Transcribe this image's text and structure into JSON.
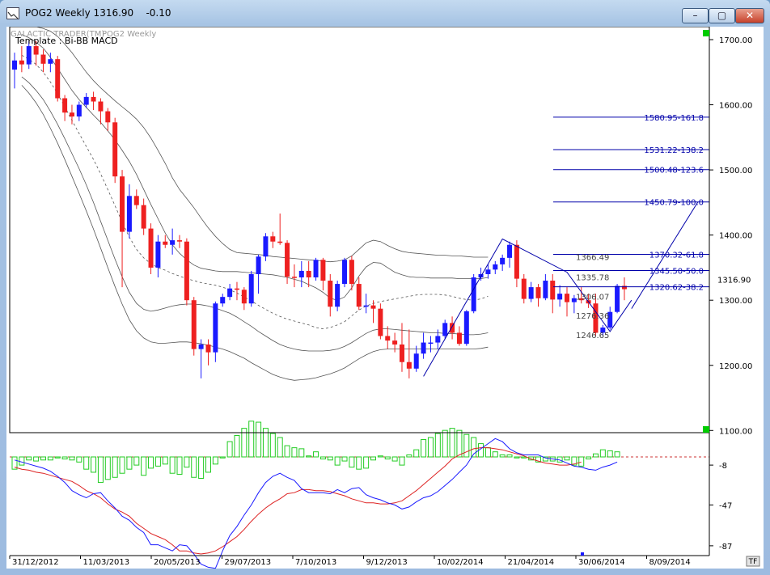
{
  "window": {
    "title": "POG2 Weekly 1316.90    -0.10",
    "buttons": {
      "minimize": "–",
      "maximize": "▢",
      "close": "✕"
    }
  },
  "header": {
    "brand": "GALACTIC TRADER(TM)",
    "instrument": "POG2 Weekly",
    "template": "Template : Bi-BB MACD"
  },
  "colors": {
    "up": "#1a1aff",
    "down": "#ee2020",
    "fib": "#0000aa",
    "macd_line": "#1a1aff",
    "signal_line": "#dd2222",
    "histogram": "#22cc22",
    "bands": "#555555",
    "marker": "#00cc00"
  },
  "chart_data": [
    {
      "type": "candlestick",
      "title": "POG2 Weekly",
      "x_labels": [
        "31/12/2012",
        "11/03/2013",
        "20/05/2013",
        "29/07/2013",
        "7/10/2013",
        "9/12/2013",
        "10/02/2014",
        "21/04/2014",
        "30/06/2014",
        "8/09/2014"
      ],
      "y_ticks": [
        1700,
        1600,
        1500,
        1400,
        1300,
        1200,
        1100
      ],
      "y_tick_labels": [
        "1700.00",
        "1600.00",
        "1500.00",
        "1400.00",
        "1300.00",
        "1200.00",
        "1100.00"
      ],
      "ylim": [
        1095,
        1725
      ],
      "last_price": 1316.9,
      "last_price_label": "1316.90",
      "change": -0.1,
      "candles": [
        [
          1654,
          1668,
          1625,
          1680
        ],
        [
          1668,
          1662,
          1650,
          1690
        ],
        [
          1662,
          1690,
          1655,
          1698
        ],
        [
          1690,
          1677,
          1660,
          1698
        ],
        [
          1677,
          1663,
          1650,
          1685
        ],
        [
          1663,
          1670,
          1650,
          1680
        ],
        [
          1670,
          1610,
          1605,
          1675
        ],
        [
          1610,
          1588,
          1575,
          1615
        ],
        [
          1588,
          1582,
          1570,
          1600
        ],
        [
          1582,
          1600,
          1575,
          1605
        ],
        [
          1600,
          1612,
          1595,
          1618
        ],
        [
          1612,
          1605,
          1592,
          1620
        ],
        [
          1605,
          1590,
          1570,
          1610
        ],
        [
          1590,
          1573,
          1560,
          1595
        ],
        [
          1573,
          1490,
          1480,
          1580
        ],
        [
          1490,
          1405,
          1320,
          1500
        ],
        [
          1405,
          1460,
          1395,
          1478
        ],
        [
          1460,
          1446,
          1440,
          1470
        ],
        [
          1446,
          1410,
          1400,
          1456
        ],
        [
          1410,
          1350,
          1340,
          1418
        ],
        [
          1350,
          1390,
          1335,
          1400
        ],
        [
          1390,
          1385,
          1380,
          1400
        ],
        [
          1385,
          1392,
          1370,
          1410
        ],
        [
          1392,
          1390,
          1380,
          1400
        ],
        [
          1390,
          1300,
          1292,
          1395
        ],
        [
          1300,
          1225,
          1215,
          1305
        ],
        [
          1225,
          1232,
          1180,
          1240
        ],
        [
          1232,
          1220,
          1200,
          1240
        ],
        [
          1220,
          1295,
          1205,
          1298
        ],
        [
          1295,
          1305,
          1290,
          1310
        ],
        [
          1305,
          1318,
          1300,
          1325
        ],
        [
          1318,
          1316,
          1300,
          1328
        ],
        [
          1316,
          1295,
          1285,
          1320
        ],
        [
          1295,
          1340,
          1290,
          1345
        ],
        [
          1340,
          1367,
          1310,
          1370
        ],
        [
          1367,
          1398,
          1360,
          1403
        ],
        [
          1398,
          1390,
          1380,
          1405
        ],
        [
          1390,
          1388,
          1385,
          1433
        ],
        [
          1388,
          1336,
          1325,
          1392
        ],
        [
          1336,
          1335,
          1320,
          1355
        ],
        [
          1335,
          1345,
          1320,
          1360
        ],
        [
          1345,
          1335,
          1320,
          1360
        ],
        [
          1335,
          1362,
          1330,
          1365
        ],
        [
          1362,
          1330,
          1315,
          1365
        ],
        [
          1330,
          1290,
          1275,
          1340
        ],
        [
          1290,
          1325,
          1283,
          1330
        ],
        [
          1325,
          1362,
          1320,
          1365
        ],
        [
          1362,
          1325,
          1315,
          1368
        ],
        [
          1325,
          1290,
          1285,
          1335
        ],
        [
          1290,
          1292,
          1280,
          1310
        ],
        [
          1292,
          1287,
          1265,
          1300
        ],
        [
          1287,
          1245,
          1240,
          1295
        ],
        [
          1245,
          1238,
          1225,
          1260
        ],
        [
          1238,
          1232,
          1220,
          1250
        ],
        [
          1232,
          1205,
          1190,
          1265
        ],
        [
          1205,
          1195,
          1180,
          1255
        ],
        [
          1195,
          1218,
          1190,
          1230
        ],
        [
          1218,
          1235,
          1210,
          1250
        ],
        [
          1235,
          1235,
          1220,
          1245
        ],
        [
          1235,
          1245,
          1225,
          1255
        ],
        [
          1245,
          1265,
          1240,
          1270
        ],
        [
          1265,
          1250,
          1240,
          1275
        ],
        [
          1250,
          1233,
          1230,
          1260
        ],
        [
          1233,
          1283,
          1230,
          1285
        ],
        [
          1283,
          1335,
          1280,
          1340
        ],
        [
          1335,
          1340,
          1330,
          1350
        ],
        [
          1340,
          1347,
          1333,
          1355
        ],
        [
          1347,
          1355,
          1340,
          1360
        ],
        [
          1355,
          1365,
          1345,
          1370
        ],
        [
          1365,
          1385,
          1350,
          1390
        ],
        [
          1385,
          1333,
          1320,
          1392
        ],
        [
          1333,
          1302,
          1295,
          1340
        ],
        [
          1302,
          1320,
          1297,
          1328
        ],
        [
          1320,
          1303,
          1290,
          1325
        ],
        [
          1303,
          1330,
          1300,
          1340
        ],
        [
          1330,
          1301,
          1280,
          1340
        ],
        [
          1301,
          1310,
          1290,
          1323
        ],
        [
          1310,
          1297,
          1275,
          1320
        ],
        [
          1297,
          1303,
          1280,
          1308
        ],
        [
          1303,
          1300,
          1295,
          1320
        ],
        [
          1300,
          1295,
          1288,
          1310
        ],
        [
          1295,
          1250,
          1245,
          1310
        ],
        [
          1250,
          1258,
          1245,
          1262
        ],
        [
          1258,
          1282,
          1255,
          1290
        ],
        [
          1282,
          1322,
          1280,
          1325
        ],
        [
          1322,
          1316.9,
          1300,
          1335
        ]
      ],
      "bands_start": 1,
      "bb_upper_outer": [
        1725,
        1722,
        1720,
        1717,
        1713,
        1705,
        1693,
        1680,
        1665,
        1650,
        1637,
        1626,
        1616,
        1606,
        1597,
        1588,
        1578,
        1565,
        1549,
        1530,
        1510,
        1488,
        1470,
        1456,
        1442,
        1426,
        1411,
        1398,
        1387,
        1378,
        1373,
        1372,
        1371,
        1370,
        1369,
        1367,
        1366,
        1365,
        1364,
        1363,
        1362,
        1361,
        1360,
        1359,
        1360,
        1362,
        1368,
        1378,
        1388,
        1392,
        1390,
        1384,
        1379,
        1375,
        1373,
        1372,
        1371,
        1370,
        1369,
        1369,
        1368,
        1368,
        1367,
        1366,
        1366,
        1366
      ],
      "bb_upper_inner": [
        1708,
        1703,
        1696,
        1687,
        1673,
        1656,
        1639,
        1622,
        1608,
        1596,
        1584,
        1573,
        1560,
        1546,
        1530,
        1513,
        1493,
        1470,
        1447,
        1425,
        1403,
        1385,
        1372,
        1362,
        1354,
        1349,
        1347,
        1345,
        1344,
        1344,
        1344,
        1343,
        1342,
        1341,
        1340,
        1339,
        1337,
        1335,
        1332,
        1329,
        1324,
        1319,
        1312,
        1303,
        1300,
        1305,
        1319,
        1337,
        1351,
        1358,
        1357,
        1350,
        1343,
        1339,
        1336,
        1335,
        1335,
        1334,
        1334,
        1334,
        1334,
        1333,
        1333,
        1333,
        1333,
        1335
      ],
      "bb_mid": [
        1676,
        1670,
        1662,
        1650,
        1635,
        1617,
        1597,
        1576,
        1556,
        1536,
        1516,
        1494,
        1470,
        1445,
        1420,
        1397,
        1378,
        1365,
        1356,
        1350,
        1346,
        1341,
        1337,
        1333,
        1330,
        1327,
        1325,
        1323,
        1320,
        1316,
        1311,
        1305,
        1299,
        1292,
        1286,
        1280,
        1275,
        1271,
        1268,
        1265,
        1262,
        1258,
        1256,
        1258,
        1262,
        1267,
        1276,
        1285,
        1291,
        1295,
        1298,
        1300,
        1302,
        1304,
        1306,
        1308,
        1309,
        1309,
        1309,
        1308,
        1306,
        1303,
        1301,
        1300,
        1302,
        1306
      ],
      "bb_lower_inner": [
        1643,
        1634,
        1622,
        1608,
        1590,
        1570,
        1548,
        1525,
        1502,
        1477,
        1450,
        1421,
        1392,
        1363,
        1336,
        1312,
        1295,
        1286,
        1283,
        1285,
        1288,
        1291,
        1293,
        1294,
        1294,
        1293,
        1291,
        1288,
        1284,
        1280,
        1274,
        1267,
        1260,
        1252,
        1245,
        1238,
        1232,
        1228,
        1225,
        1223,
        1222,
        1222,
        1222,
        1223,
        1225,
        1229,
        1235,
        1242,
        1249,
        1254,
        1256,
        1256,
        1255,
        1254,
        1253,
        1252,
        1251,
        1250,
        1250,
        1249,
        1249,
        1248,
        1247,
        1247,
        1248,
        1250
      ],
      "bb_lower_outer": [
        1630,
        1618,
        1603,
        1585,
        1564,
        1541,
        1516,
        1490,
        1464,
        1437,
        1409,
        1380,
        1350,
        1321,
        1294,
        1270,
        1253,
        1242,
        1236,
        1234,
        1234,
        1235,
        1236,
        1236,
        1235,
        1233,
        1231,
        1228,
        1225,
        1221,
        1216,
        1211,
        1204,
        1198,
        1192,
        1186,
        1182,
        1179,
        1177,
        1178,
        1179,
        1181,
        1184,
        1187,
        1191,
        1196,
        1203,
        1210,
        1216,
        1221,
        1224,
        1225,
        1225,
        1225,
        1225,
        1225,
        1225,
        1225,
        1225,
        1225,
        1225,
        1225,
        1225,
        1225,
        1226,
        1228
      ],
      "zigzag": [
        [
          57,
          1183
        ],
        [
          68,
          1394
        ],
        [
          77,
          1343
        ],
        [
          83,
          1252
        ],
        [
          86,
          1300
        ]
      ],
      "fib_levels": [
        {
          "value": 1580.95,
          "label": "1580.95-161.8"
        },
        {
          "value": 1531.22,
          "label": "1531.22-138.2"
        },
        {
          "value": 1500.48,
          "label": "1500.48-123.6"
        },
        {
          "value": 1450.79,
          "label": "1450.79-100.0"
        },
        {
          "value": 1370.32,
          "label": "1370.32-61.8"
        },
        {
          "value": 1345.5,
          "label": "1345.50-50.0"
        },
        {
          "value": 1320.62,
          "label": "1320.62-38.2"
        }
      ],
      "band_values": [
        {
          "value": 1366.49,
          "label": "1366.49"
        },
        {
          "value": 1335.78,
          "label": "1335.78"
        },
        {
          "value": 1306.07,
          "label": "1306.07"
        },
        {
          "value": 1276.36,
          "label": "1276.36"
        },
        {
          "value": 1246.65,
          "label": "1246.65"
        }
      ]
    },
    {
      "type": "macd",
      "y_tick_labels": [
        "-8",
        "-47",
        "-87"
      ],
      "y_ticks": [
        -8,
        -47,
        -87
      ],
      "zero": 0,
      "ylim": [
        -115,
        25
      ],
      "macd": [
        -3,
        -5,
        -7,
        -9,
        -11,
        -14,
        -19,
        -25,
        -33,
        -37,
        -40,
        -36,
        -35,
        -43,
        -50,
        -58,
        -62,
        -69,
        -74,
        -86,
        -86,
        -89,
        -92,
        -86,
        -87,
        -95,
        -105,
        -108,
        -109,
        -92,
        -77,
        -68,
        -57,
        -47,
        -35,
        -25,
        -19,
        -16,
        -20,
        -23,
        -31,
        -35,
        -35,
        -35,
        -36,
        -32,
        -35,
        -31,
        -30,
        -37,
        -40,
        -42,
        -45,
        -47,
        -51,
        -49,
        -44,
        -40,
        -38,
        -34,
        -28,
        -22,
        -15,
        -8,
        3,
        8,
        13,
        18,
        15,
        8,
        4,
        2,
        2,
        2,
        -1,
        -2,
        -3,
        -6,
        -9,
        -10,
        -12,
        -13,
        -10,
        -8,
        -5
      ],
      "signal": [
        -10,
        -12,
        -13,
        -15,
        -16,
        -18,
        -20,
        -22,
        -24,
        -28,
        -33,
        -36,
        -40,
        -46,
        -51,
        -54,
        -58,
        -65,
        -70,
        -75,
        -78,
        -81,
        -86,
        -92,
        -92,
        -94,
        -95,
        -94,
        -92,
        -88,
        -83,
        -78,
        -71,
        -63,
        -56,
        -50,
        -45,
        -41,
        -36,
        -35,
        -32,
        -32,
        -33,
        -33,
        -34,
        -36,
        -38,
        -41,
        -43,
        -45,
        -45,
        -46,
        -46,
        -45,
        -43,
        -38,
        -33,
        -27,
        -21,
        -15,
        -9,
        -2,
        2,
        5,
        8,
        9,
        9,
        8,
        7,
        5,
        3,
        1,
        -2,
        -4,
        -6,
        -7,
        -8,
        -8,
        -7,
        -5
      ],
      "histogram": [
        -12,
        -8,
        -3,
        -4,
        -3,
        -3,
        -1,
        -2,
        -3,
        -5,
        -12,
        -15,
        -25,
        -22,
        -20,
        -16,
        -12,
        -8,
        -18,
        -11,
        -9,
        -7,
        -16,
        -17,
        -10,
        -20,
        -21,
        -15,
        -7,
        -1,
        15,
        21,
        28,
        35,
        34,
        28,
        23,
        19,
        11,
        9,
        8,
        1,
        5,
        -2,
        -3,
        -8,
        -4,
        -10,
        -12,
        -11,
        -3,
        1,
        -2,
        -4,
        -8,
        2,
        7,
        17,
        19,
        23,
        26,
        28,
        26,
        22,
        19,
        13,
        9,
        5,
        2,
        2,
        -1,
        -1,
        -3,
        -5,
        -4,
        -4,
        -5,
        -3,
        -8,
        -9,
        -2,
        3,
        7,
        6,
        5
      ]
    }
  ],
  "footer": {
    "badge": "TF"
  }
}
